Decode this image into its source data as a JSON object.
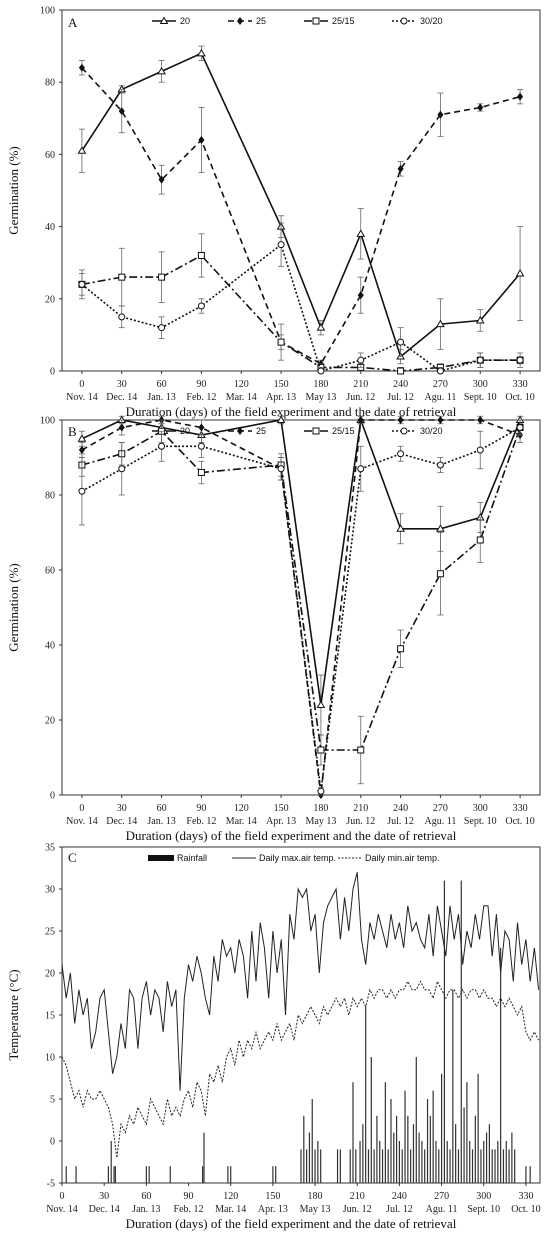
{
  "chart_data": [
    {
      "type": "line",
      "panel_label": "A",
      "ylabel": "Germination (%)",
      "xlabel": "Duration (days) of the field experiment and the date of retrieval",
      "xlim": [
        -15,
        345
      ],
      "ylim": [
        0,
        100
      ],
      "x_ticks": [
        0,
        30,
        60,
        90,
        120,
        150,
        180,
        210,
        240,
        270,
        300,
        330
      ],
      "x_dates": [
        "Nov. 14",
        "Dec. 14",
        "Jan. 13",
        "Feb. 12",
        "Mar. 14",
        "Apr. 13",
        "May 13",
        "Jun. 12",
        "Jul. 12",
        "Agu. 11",
        "Sept. 10",
        "Oct. 10"
      ],
      "y_ticks": [
        0,
        20,
        40,
        60,
        80,
        100
      ],
      "legend": "top",
      "series": [
        {
          "name": "20",
          "dash": "",
          "marker": "triangle",
          "x": [
            0,
            30,
            60,
            90,
            150,
            180,
            210,
            240,
            270,
            300,
            330
          ],
          "y": [
            61,
            78,
            83,
            88,
            40,
            12,
            38,
            4,
            13,
            14,
            27
          ],
          "err": [
            6,
            1,
            3,
            2,
            3,
            2,
            7,
            2,
            7,
            3,
            13
          ]
        },
        {
          "name": "25",
          "dash": "6,4",
          "marker": "diamond",
          "x": [
            0,
            30,
            60,
            90,
            150,
            180,
            210,
            240,
            270,
            300,
            330
          ],
          "y": [
            84,
            72,
            53,
            64,
            8,
            2,
            21,
            56,
            71,
            73,
            76
          ],
          "err": [
            2,
            6,
            4,
            9,
            2,
            1,
            5,
            2,
            6,
            1,
            2
          ]
        },
        {
          "name": "25/15",
          "dash": "8,3,2,3",
          "marker": "square",
          "x": [
            0,
            30,
            60,
            90,
            150,
            180,
            210,
            240,
            270,
            300,
            330
          ],
          "y": [
            24,
            26,
            26,
            32,
            8,
            1,
            1,
            0,
            1,
            3,
            3
          ],
          "err": [
            4,
            8,
            7,
            6,
            5,
            1,
            1,
            1,
            1,
            2,
            2
          ]
        },
        {
          "name": "30/20",
          "dash": "2,2",
          "marker": "circle",
          "x": [
            0,
            30,
            60,
            90,
            150,
            180,
            210,
            240,
            270,
            300,
            330
          ],
          "y": [
            24,
            15,
            12,
            18,
            35,
            0,
            3,
            8,
            0,
            3,
            3
          ],
          "err": [
            3,
            3,
            3,
            2,
            6,
            1,
            2,
            4,
            1,
            2,
            1
          ]
        }
      ]
    },
    {
      "type": "line",
      "panel_label": "B",
      "ylabel": "Germination (%)",
      "xlabel": "Duration (days) of the field experiment and the date of retrieval",
      "xlim": [
        -15,
        345
      ],
      "ylim": [
        0,
        100
      ],
      "x_ticks": [
        0,
        30,
        60,
        90,
        120,
        150,
        180,
        210,
        240,
        270,
        300,
        330
      ],
      "x_dates": [
        "Nov. 14",
        "Dec. 14",
        "Jan. 13",
        "Feb. 12",
        "Mar. 14",
        "Apr. 13",
        "May 13",
        "Jun. 12",
        "Jul. 12",
        "Agu. 11",
        "Sept. 10",
        "Oct. 10"
      ],
      "y_ticks": [
        0,
        20,
        40,
        60,
        80,
        100
      ],
      "legend": "top",
      "series": [
        {
          "name": "20",
          "dash": "",
          "marker": "triangle",
          "x": [
            0,
            30,
            60,
            90,
            150,
            180,
            210,
            240,
            270,
            300,
            330
          ],
          "y": [
            95,
            100,
            98,
            96,
            100,
            24,
            100,
            71,
            71,
            74,
            100
          ],
          "err": [
            2,
            1,
            1,
            2,
            1,
            8,
            1,
            4,
            6,
            4,
            1
          ]
        },
        {
          "name": "25",
          "dash": "6,4",
          "marker": "diamond",
          "x": [
            0,
            30,
            60,
            90,
            150,
            180,
            210,
            240,
            270,
            300,
            330
          ],
          "y": [
            92,
            98,
            100,
            98,
            87,
            0,
            100,
            100,
            100,
            100,
            96
          ],
          "err": [
            2,
            2,
            1,
            2,
            3,
            1,
            1,
            1,
            1,
            1,
            2
          ]
        },
        {
          "name": "25/15",
          "dash": "8,3,2,3",
          "marker": "square",
          "x": [
            0,
            30,
            60,
            90,
            150,
            180,
            210,
            240,
            270,
            300,
            330
          ],
          "y": [
            88,
            91,
            97,
            86,
            88,
            12,
            12,
            39,
            59,
            68,
            98
          ],
          "err": [
            3,
            3,
            3,
            3,
            3,
            4,
            9,
            5,
            11,
            6,
            2
          ]
        },
        {
          "name": "30/20",
          "dash": "2,2",
          "marker": "circle",
          "x": [
            0,
            30,
            60,
            90,
            150,
            180,
            210,
            240,
            270,
            300,
            330
          ],
          "y": [
            81,
            87,
            93,
            93,
            87,
            1,
            87,
            91,
            88,
            92,
            98
          ],
          "err": [
            9,
            7,
            4,
            3,
            3,
            1,
            6,
            2,
            2,
            5,
            2
          ]
        }
      ]
    },
    {
      "type": "line",
      "panel_label": "C",
      "ylabel": "Temperature (°C)",
      "xlabel": "Duration (days) of the field experiment and the date of retrieval",
      "xlim": [
        0,
        340
      ],
      "ylim": [
        -5,
        35
      ],
      "x_ticks": [
        0,
        30,
        60,
        90,
        120,
        150,
        180,
        210,
        240,
        270,
        300,
        330
      ],
      "x_dates": [
        "Nov. 14",
        "Dec. 14",
        "Jan. 13",
        "Feb. 12",
        "Mar. 14",
        "Apr. 13",
        "May 13",
        "Jun. 12",
        "Jul. 12",
        "Agu. 11",
        "Sept. 10",
        "Oct. 10"
      ],
      "y_ticks": [
        -5,
        0,
        5,
        10,
        15,
        20,
        25,
        30,
        35
      ],
      "legend": "top",
      "series": [
        {
          "name": "Rainfall",
          "kind": "bars",
          "x": [
            3,
            10,
            33,
            35,
            37,
            38,
            60,
            62,
            77,
            100,
            101,
            118,
            120,
            150,
            152,
            170,
            172,
            174,
            176,
            178,
            180,
            182,
            184,
            196,
            198,
            205,
            207,
            209,
            212,
            214,
            216,
            218,
            220,
            222,
            224,
            226,
            228,
            230,
            232,
            234,
            236,
            238,
            240,
            242,
            244,
            246,
            248,
            250,
            252,
            254,
            256,
            258,
            260,
            262,
            264,
            266,
            268,
            270,
            272,
            274,
            276,
            278,
            280,
            282,
            284,
            286,
            288,
            290,
            292,
            294,
            296,
            298,
            300,
            302,
            304,
            306,
            308,
            310,
            312,
            314,
            316,
            318,
            320,
            322,
            330,
            333
          ],
          "y": [
            -3,
            -3,
            -3,
            0,
            -3,
            -3,
            -3,
            -3,
            -3,
            -3,
            1,
            -3,
            -3,
            -3,
            -3,
            -1,
            3,
            -1,
            1,
            5,
            -1,
            0,
            -1,
            -1,
            -1,
            -1,
            7,
            -1,
            0,
            2,
            16,
            -1,
            10,
            -1,
            3,
            0,
            -1,
            7,
            -1,
            5,
            1,
            3,
            0,
            -1,
            6,
            3,
            -1,
            2,
            10,
            1,
            0,
            -1,
            5,
            3,
            6,
            0,
            -1,
            8,
            31,
            0,
            -1,
            18,
            2,
            -1,
            31,
            4,
            7,
            0,
            -1,
            3,
            8,
            -1,
            0,
            1,
            2,
            -1,
            -1,
            0,
            23,
            -1,
            0,
            -1,
            1,
            -1,
            -3,
            -3
          ]
        },
        {
          "name": "Daily max.air temp.",
          "kind": "line",
          "dash": "",
          "x": [
            0,
            3,
            6,
            9,
            12,
            15,
            18,
            21,
            24,
            27,
            30,
            33,
            36,
            39,
            42,
            45,
            48,
            51,
            54,
            57,
            60,
            63,
            66,
            69,
            72,
            75,
            78,
            81,
            84,
            87,
            90,
            93,
            96,
            99,
            102,
            105,
            108,
            111,
            114,
            117,
            120,
            123,
            126,
            129,
            132,
            135,
            138,
            141,
            144,
            147,
            150,
            153,
            156,
            159,
            162,
            165,
            168,
            171,
            174,
            177,
            180,
            183,
            186,
            189,
            192,
            195,
            198,
            201,
            204,
            207,
            210,
            213,
            216,
            219,
            222,
            225,
            228,
            231,
            234,
            237,
            240,
            243,
            246,
            249,
            252,
            255,
            258,
            261,
            264,
            267,
            270,
            273,
            276,
            279,
            282,
            285,
            288,
            291,
            294,
            297,
            300,
            303,
            306,
            309,
            312,
            315,
            318,
            321,
            324,
            327,
            330,
            333,
            336,
            339
          ],
          "y": [
            21,
            17,
            20,
            14,
            18,
            15,
            17,
            11,
            13,
            17,
            18,
            13,
            8,
            10,
            14,
            11,
            18,
            17,
            11,
            17,
            19,
            15,
            18,
            17,
            13,
            19,
            16,
            18,
            6,
            17,
            21,
            19,
            22,
            20,
            17,
            15,
            22,
            19,
            24,
            22,
            23,
            20,
            24,
            22,
            17,
            25,
            19,
            26,
            23,
            17,
            25,
            20,
            24,
            15,
            27,
            24,
            30,
            29,
            30,
            25,
            27,
            20,
            26,
            28,
            29,
            30,
            24,
            29,
            25,
            30,
            32,
            24,
            21,
            26,
            24,
            27,
            25,
            23,
            27,
            24,
            26,
            23,
            28,
            25,
            26,
            24,
            23,
            27,
            22,
            28,
            25,
            22,
            28,
            24,
            27,
            21,
            25,
            23,
            27,
            24,
            28,
            28,
            22,
            27,
            20,
            25,
            24,
            19,
            26,
            21,
            24,
            19,
            23,
            18
          ]
        },
        {
          "name": "Daily min.air temp.",
          "kind": "line",
          "dash": "2,1.5",
          "x": [
            0,
            3,
            6,
            9,
            12,
            15,
            18,
            21,
            24,
            27,
            30,
            33,
            36,
            39,
            42,
            45,
            48,
            51,
            54,
            57,
            60,
            63,
            66,
            69,
            72,
            75,
            78,
            81,
            84,
            87,
            90,
            93,
            96,
            99,
            102,
            105,
            108,
            111,
            114,
            117,
            120,
            123,
            126,
            129,
            132,
            135,
            138,
            141,
            144,
            147,
            150,
            153,
            156,
            159,
            162,
            165,
            168,
            171,
            174,
            177,
            180,
            183,
            186,
            189,
            192,
            195,
            198,
            201,
            204,
            207,
            210,
            213,
            216,
            219,
            222,
            225,
            228,
            231,
            234,
            237,
            240,
            243,
            246,
            249,
            252,
            255,
            258,
            261,
            264,
            267,
            270,
            273,
            276,
            279,
            282,
            285,
            288,
            291,
            294,
            297,
            300,
            303,
            306,
            309,
            312,
            315,
            318,
            321,
            324,
            327,
            330,
            333,
            336,
            339
          ],
          "y": [
            10,
            9,
            7,
            5,
            6,
            4,
            6,
            5,
            5,
            6,
            5,
            4,
            2,
            -2,
            2,
            1,
            3,
            2,
            4,
            3,
            2,
            5,
            4,
            3,
            2,
            5,
            3,
            4,
            3,
            5,
            6,
            4,
            7,
            6,
            3,
            8,
            7,
            9,
            7,
            10,
            11,
            9,
            12,
            10,
            12,
            11,
            13,
            11,
            12,
            13,
            12,
            14,
            12,
            13,
            14,
            12,
            15,
            14,
            15,
            16,
            15,
            14,
            16,
            15,
            16,
            17,
            16,
            17,
            15,
            17,
            16,
            17,
            16,
            18,
            17,
            18,
            18,
            17,
            18,
            17,
            18,
            18,
            19,
            18,
            18,
            19,
            18,
            18,
            17,
            19,
            18,
            17,
            18,
            18,
            17,
            18,
            17,
            18,
            18,
            17,
            18,
            17,
            17,
            16,
            17,
            16,
            17,
            16,
            15,
            16,
            13,
            12,
            13,
            12
          ]
        }
      ]
    }
  ]
}
